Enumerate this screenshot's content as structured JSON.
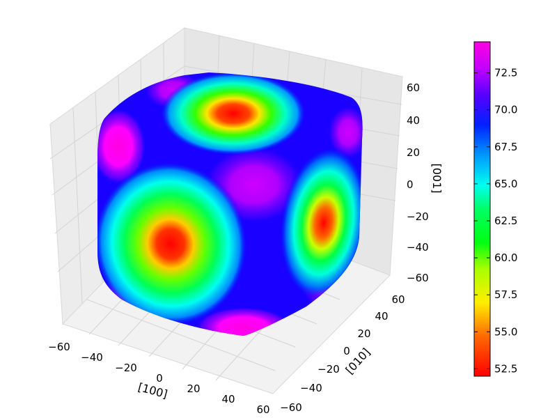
{
  "chart_data": {
    "type": "surface3d",
    "title": "",
    "xlabel": "[100]",
    "ylabel": "[010]",
    "zlabel": "[001]",
    "x_ticks": [
      "−60",
      "−40",
      "−20",
      "0",
      "20",
      "40",
      "60"
    ],
    "y_ticks": [
      "−60",
      "−40",
      "−20",
      "0",
      "20",
      "40",
      "60"
    ],
    "z_ticks": [
      "−60",
      "−40",
      "−20",
      "0",
      "20",
      "40",
      "60"
    ],
    "xlim": [
      -60,
      60
    ],
    "ylim": [
      -60,
      60
    ],
    "zlim": [
      -60,
      60
    ],
    "grid": true,
    "colormap": "gist_rainbow_r",
    "colorbar": {
      "min": 52,
      "max": 74.6,
      "ticks": [
        "52.5",
        "55.0",
        "57.5",
        "60.0",
        "62.5",
        "65.0",
        "67.5",
        "70.0",
        "72.5"
      ],
      "tick_values": [
        52.5,
        55.0,
        57.5,
        60.0,
        62.5,
        65.0,
        67.5,
        70.0,
        72.5
      ]
    },
    "surface_description": "rounded-cube directional surface; minima (~52.5) at face centers along [100],[010],[001]; maxima (~74) along cube diagonals [111]"
  }
}
